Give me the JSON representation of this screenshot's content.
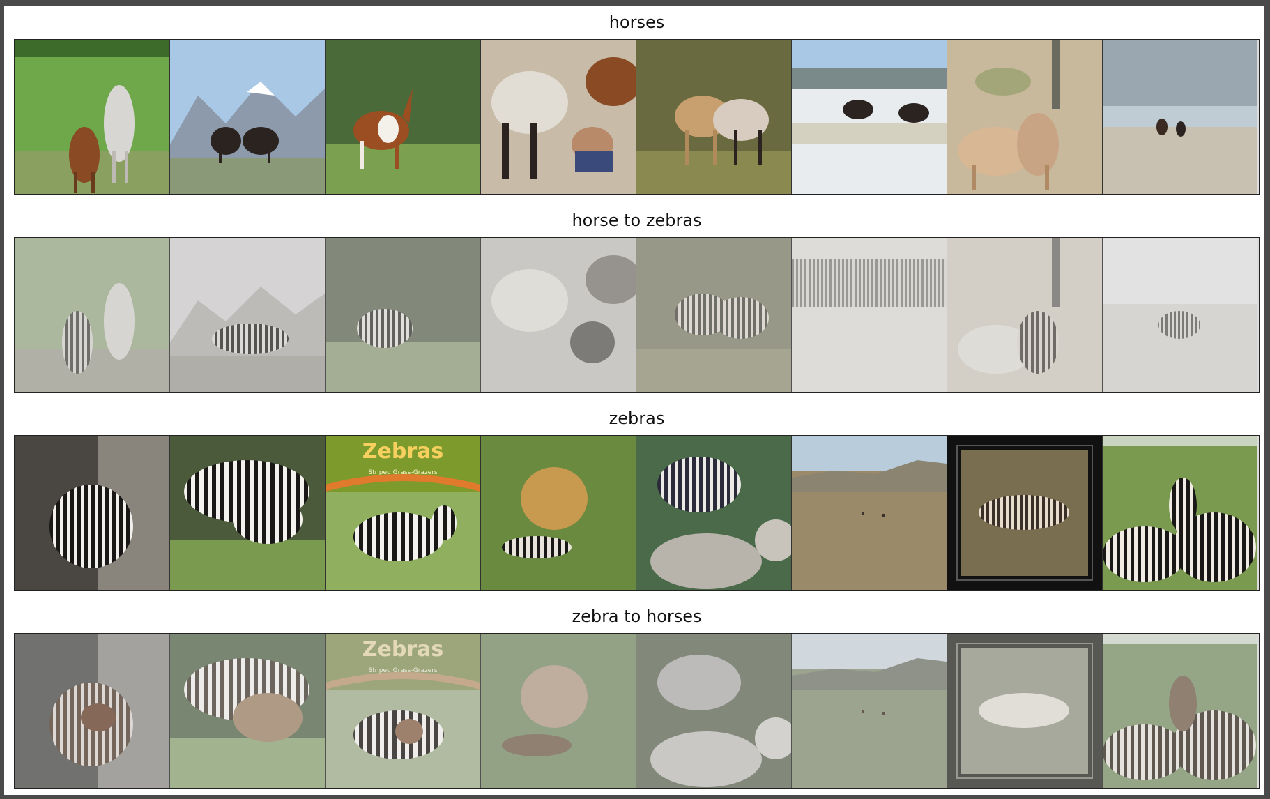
{
  "rows": [
    {
      "title": "horses"
    },
    {
      "title": "horse to zebras"
    },
    {
      "title": "zebras"
    },
    {
      "title": "zebra to horses"
    }
  ],
  "thumb_text": {
    "book_title": "Zebras",
    "book_subtitle": "Striped Grass-Grazers"
  },
  "colors": {
    "grass": "#6fa84a",
    "sky": "#a9c8e6",
    "sand": "#c8b89c",
    "snow": "#e8ecef",
    "brown_horse": "#8a4a24",
    "dark_horse": "#2b2320",
    "tan_horse": "#c8a070",
    "book_green": "#7d9a2c"
  }
}
